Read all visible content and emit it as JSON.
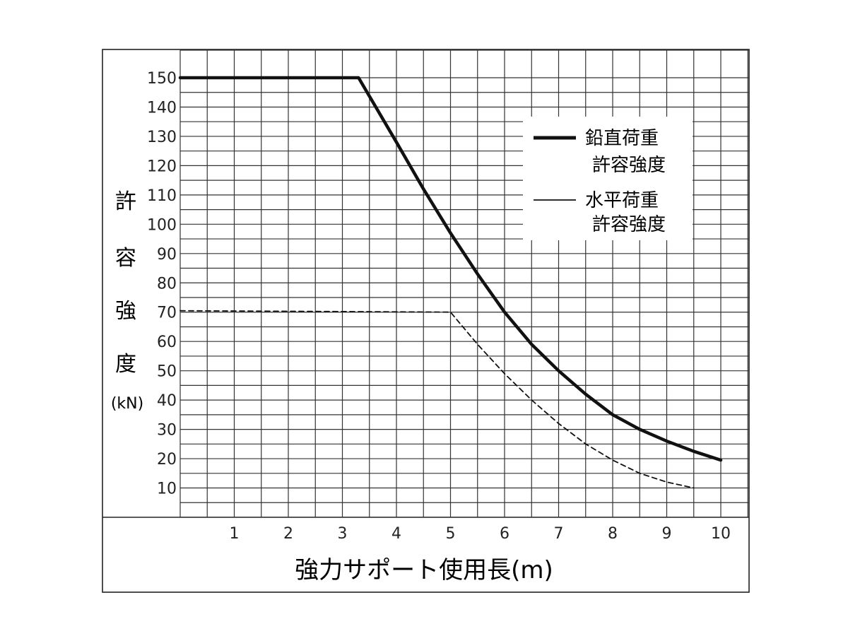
{
  "chart_data": {
    "type": "line",
    "title": "",
    "ylabel_chars": [
      "許",
      "容",
      "強",
      "度"
    ],
    "yunit": "(kN)",
    "xlabel": "強力サポート使用長(m)",
    "xlim": [
      0,
      10
    ],
    "ylim": [
      0,
      150
    ],
    "x_ticks": [
      "1",
      "2",
      "3",
      "4",
      "5",
      "6",
      "7",
      "8",
      "9",
      "10"
    ],
    "y_ticks": [
      "10",
      "20",
      "30",
      "40",
      "50",
      "60",
      "70",
      "80",
      "90",
      "100",
      "110",
      "120",
      "130",
      "140",
      "150"
    ],
    "grid": true,
    "legend_position": "top-right",
    "series": [
      {
        "name_lines": [
          "鉛直荷重",
          "許容強度"
        ],
        "style": "solid-thick",
        "color": "#111111",
        "points": [
          [
            0,
            150
          ],
          [
            3.3,
            150
          ],
          [
            4,
            128
          ],
          [
            4.5,
            112
          ],
          [
            5,
            97
          ],
          [
            5.5,
            83
          ],
          [
            6,
            70
          ],
          [
            6.5,
            59
          ],
          [
            7,
            50
          ],
          [
            7.5,
            42
          ],
          [
            8,
            35
          ],
          [
            8.5,
            30
          ],
          [
            9,
            26
          ],
          [
            9.5,
            22.5
          ],
          [
            10,
            19.5
          ]
        ]
      },
      {
        "name_lines": [
          "水平荷重",
          "許容強度"
        ],
        "style": "dashed",
        "color": "#111111",
        "points": [
          [
            0,
            70.5
          ],
          [
            5,
            70
          ],
          [
            5.5,
            59
          ],
          [
            6,
            49
          ],
          [
            6.5,
            40
          ],
          [
            7,
            32
          ],
          [
            7.5,
            25
          ],
          [
            8,
            19.5
          ],
          [
            8.5,
            15
          ],
          [
            9,
            12
          ],
          [
            9.5,
            10
          ]
        ]
      }
    ]
  }
}
